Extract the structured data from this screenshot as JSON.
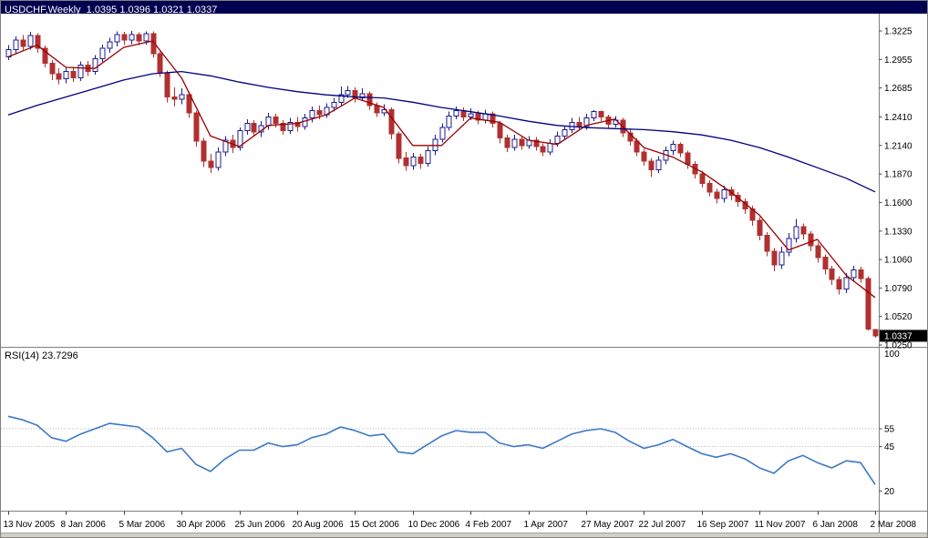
{
  "window": {
    "title": "USDCHF,Weekly  1.0395 1.0396 1.0321 1.0337"
  },
  "colors": {
    "title_bar_bg": "#000050",
    "up_candle": "#1C1C90",
    "down_candle": "#B03030",
    "ma_fast": "#990000",
    "ma_slow": "#000080",
    "rsi_line": "#3C78C8",
    "price_tag_bg": "#000000",
    "price_tag_text": "#FFFFFF",
    "axis_text": "#000000",
    "level_dash": "#BBBBBB",
    "window_chrome": "#D4D0C8",
    "separator": "#808080"
  },
  "chart_data": {
    "type": "candlestick",
    "symbol": "USDCHF",
    "timeframe": "Weekly",
    "ohlc_display": {
      "open": "1.0395",
      "high": "1.0396",
      "low": "1.0321",
      "close": "1.0337"
    },
    "price_axis": [
      "1.3225",
      "1.2955",
      "1.2685",
      "1.2410",
      "1.2140",
      "1.1870",
      "1.1600",
      "1.1330",
      "1.1060",
      "1.0790",
      "1.0520",
      "1.0250"
    ],
    "price_tag": "1.0337",
    "x_label_every": 8,
    "x_axis_labels": [
      "13 Nov 2005",
      "8 Jan 2006",
      "5 Mar 2006",
      "30 Apr 2006",
      "25 Jun 2006",
      "20 Aug 2006",
      "15 Oct 2006",
      "10 Dec 2006",
      "4 Feb 2007",
      "1 Apr 2007",
      "27 May 2007",
      "22 Jul 2007",
      "16 Sep 2007",
      "11 Nov 2007",
      "6 Jan 2008",
      "2 Mar 2008"
    ],
    "candles": [
      [
        1.298,
        1.309,
        1.295,
        1.305
      ],
      [
        1.305,
        1.3175,
        1.301,
        1.314
      ],
      [
        1.314,
        1.3185,
        1.304,
        1.308
      ],
      [
        1.308,
        1.3215,
        1.305,
        1.318
      ],
      [
        1.318,
        1.3205,
        1.302,
        1.306
      ],
      [
        1.306,
        1.3085,
        1.288,
        1.292
      ],
      [
        1.292,
        1.295,
        1.276,
        1.282
      ],
      [
        1.282,
        1.287,
        1.272,
        1.277
      ],
      [
        1.277,
        1.288,
        1.273,
        1.284
      ],
      [
        1.284,
        1.2885,
        1.274,
        1.278
      ],
      [
        1.278,
        1.2935,
        1.275,
        1.29
      ],
      [
        1.29,
        1.294,
        1.28,
        1.284
      ],
      [
        1.284,
        1.2995,
        1.281,
        1.296
      ],
      [
        1.296,
        1.3095,
        1.293,
        1.306
      ],
      [
        1.306,
        1.316,
        1.302,
        1.312
      ],
      [
        1.312,
        1.322,
        1.308,
        1.319
      ],
      [
        1.319,
        1.3215,
        1.309,
        1.314
      ],
      [
        1.314,
        1.3225,
        1.31,
        1.319
      ],
      [
        1.319,
        1.321,
        1.309,
        1.313
      ],
      [
        1.313,
        1.3222,
        1.3095,
        1.32
      ],
      [
        1.32,
        1.322,
        1.297,
        1.301
      ],
      [
        1.301,
        1.303,
        1.279,
        1.283
      ],
      [
        1.283,
        1.285,
        1.255,
        1.26
      ],
      [
        1.26,
        1.269,
        1.251,
        1.258
      ],
      [
        1.258,
        1.268,
        1.253,
        1.262
      ],
      [
        1.262,
        1.265,
        1.24,
        1.245
      ],
      [
        1.245,
        1.247,
        1.213,
        1.218
      ],
      [
        1.218,
        1.221,
        1.1935,
        1.199
      ],
      [
        1.199,
        1.206,
        1.188,
        1.193
      ],
      [
        1.193,
        1.212,
        1.19,
        1.208
      ],
      [
        1.208,
        1.223,
        1.204,
        1.219
      ],
      [
        1.219,
        1.224,
        1.207,
        1.212
      ],
      [
        1.212,
        1.231,
        1.209,
        1.228
      ],
      [
        1.228,
        1.239,
        1.224,
        1.235
      ],
      [
        1.235,
        1.238,
        1.223,
        1.227
      ],
      [
        1.227,
        1.237,
        1.222,
        1.233
      ],
      [
        1.233,
        1.245,
        1.229,
        1.241
      ],
      [
        1.241,
        1.244,
        1.231,
        1.235
      ],
      [
        1.235,
        1.238,
        1.224,
        1.228
      ],
      [
        1.228,
        1.24,
        1.225,
        1.236
      ],
      [
        1.236,
        1.241,
        1.227,
        1.232
      ],
      [
        1.232,
        1.244,
        1.229,
        1.24
      ],
      [
        1.24,
        1.251,
        1.236,
        1.247
      ],
      [
        1.247,
        1.252,
        1.239,
        1.243
      ],
      [
        1.243,
        1.254,
        1.24,
        1.25
      ],
      [
        1.25,
        1.259,
        1.246,
        1.255
      ],
      [
        1.255,
        1.27,
        1.252,
        1.262
      ],
      [
        1.262,
        1.2705,
        1.259,
        1.266
      ],
      [
        1.266,
        1.269,
        1.255,
        1.259
      ],
      [
        1.259,
        1.268,
        1.256,
        1.263
      ],
      [
        1.263,
        1.265,
        1.248,
        1.252
      ],
      [
        1.252,
        1.255,
        1.241,
        1.245
      ],
      [
        1.245,
        1.253,
        1.242,
        1.248
      ],
      [
        1.248,
        1.25,
        1.22,
        1.225
      ],
      [
        1.225,
        1.227,
        1.197,
        1.202
      ],
      [
        1.202,
        1.208,
        1.19,
        1.195
      ],
      [
        1.195,
        1.207,
        1.191,
        1.203
      ],
      [
        1.203,
        1.206,
        1.192,
        1.197
      ],
      [
        1.197,
        1.213,
        1.194,
        1.209
      ],
      [
        1.209,
        1.224,
        1.205,
        1.22
      ],
      [
        1.22,
        1.235,
        1.217,
        1.231
      ],
      [
        1.231,
        1.246,
        1.228,
        1.242
      ],
      [
        1.242,
        1.251,
        1.239,
        1.247
      ],
      [
        1.247,
        1.25,
        1.237,
        1.241
      ],
      [
        1.241,
        1.249,
        1.238,
        1.244
      ],
      [
        1.244,
        1.247,
        1.234,
        1.238
      ],
      [
        1.238,
        1.248,
        1.235,
        1.244
      ],
      [
        1.244,
        1.246,
        1.231,
        1.235
      ],
      [
        1.235,
        1.237,
        1.216,
        1.221
      ],
      [
        1.221,
        1.224,
        1.208,
        1.212
      ],
      [
        1.212,
        1.224,
        1.209,
        1.22
      ],
      [
        1.22,
        1.223,
        1.21,
        1.214
      ],
      [
        1.214,
        1.223,
        1.211,
        1.219
      ],
      [
        1.219,
        1.222,
        1.209,
        1.213
      ],
      [
        1.213,
        1.216,
        1.204,
        1.208
      ],
      [
        1.208,
        1.22,
        1.205,
        1.216
      ],
      [
        1.216,
        1.227,
        1.213,
        1.223
      ],
      [
        1.223,
        1.233,
        1.22,
        1.229
      ],
      [
        1.229,
        1.24,
        1.226,
        1.236
      ],
      [
        1.236,
        1.241,
        1.228,
        1.232
      ],
      [
        1.232,
        1.244,
        1.229,
        1.24
      ],
      [
        1.24,
        1.2475,
        1.237,
        1.246
      ],
      [
        1.246,
        1.247,
        1.237,
        1.241
      ],
      [
        1.241,
        1.243,
        1.23,
        1.234
      ],
      [
        1.234,
        1.242,
        1.231,
        1.238
      ],
      [
        1.238,
        1.24,
        1.222,
        1.226
      ],
      [
        1.226,
        1.229,
        1.214,
        1.218
      ],
      [
        1.218,
        1.221,
        1.204,
        1.208
      ],
      [
        1.208,
        1.211,
        1.195,
        1.199
      ],
      [
        1.199,
        1.202,
        1.184,
        1.191
      ],
      [
        1.191,
        1.204,
        1.188,
        1.2
      ],
      [
        1.2,
        1.213,
        1.196,
        1.209
      ],
      [
        1.209,
        1.2185,
        1.205,
        1.215
      ],
      [
        1.215,
        1.217,
        1.203,
        1.207
      ],
      [
        1.207,
        1.209,
        1.192,
        1.196
      ],
      [
        1.196,
        1.199,
        1.183,
        1.187
      ],
      [
        1.187,
        1.19,
        1.174,
        1.178
      ],
      [
        1.178,
        1.181,
        1.166,
        1.17
      ],
      [
        1.17,
        1.173,
        1.159,
        1.164
      ],
      [
        1.164,
        1.176,
        1.16,
        1.172
      ],
      [
        1.172,
        1.175,
        1.162,
        1.167
      ],
      [
        1.167,
        1.17,
        1.156,
        1.161
      ],
      [
        1.161,
        1.164,
        1.149,
        1.154
      ],
      [
        1.154,
        1.157,
        1.138,
        1.143
      ],
      [
        1.143,
        1.146,
        1.124,
        1.129
      ],
      [
        1.129,
        1.132,
        1.109,
        1.114
      ],
      [
        1.114,
        1.117,
        1.095,
        1.101
      ],
      [
        1.101,
        1.118,
        1.097,
        1.113
      ],
      [
        1.113,
        1.131,
        1.109,
        1.126
      ],
      [
        1.126,
        1.1445,
        1.122,
        1.137
      ],
      [
        1.137,
        1.14,
        1.125,
        1.13
      ],
      [
        1.13,
        1.133,
        1.114,
        1.119
      ],
      [
        1.119,
        1.122,
        1.103,
        1.108
      ],
      [
        1.108,
        1.111,
        1.092,
        1.097
      ],
      [
        1.097,
        1.1,
        1.082,
        1.087
      ],
      [
        1.087,
        1.09,
        1.073,
        1.078
      ],
      [
        1.078,
        1.093,
        1.074,
        1.089
      ],
      [
        1.089,
        1.1,
        1.085,
        1.096
      ],
      [
        1.096,
        1.099,
        1.084,
        1.088
      ],
      [
        1.088,
        1.09,
        1.039,
        1.04
      ],
      [
        1.0395,
        1.0396,
        1.0321,
        1.0337
      ]
    ],
    "overlays": [
      {
        "name": "ma-fast",
        "color": "#990000",
        "sample_step": 4,
        "values": [
          1.298,
          1.309,
          1.288,
          1.287,
          1.307,
          1.313,
          1.278,
          1.223,
          1.213,
          1.233,
          1.235,
          1.243,
          1.259,
          1.25,
          1.214,
          1.214,
          1.24,
          1.236,
          1.219,
          1.215,
          1.233,
          1.239,
          1.212,
          1.203,
          1.189,
          1.17,
          1.148,
          1.115,
          1.125,
          1.091,
          1.07
        ]
      },
      {
        "name": "ma-slow",
        "color": "#000080",
        "sample_step": 4,
        "values": [
          1.243,
          1.252,
          1.26,
          1.268,
          1.276,
          1.282,
          1.284,
          1.28,
          1.274,
          1.269,
          1.265,
          1.262,
          1.26,
          1.259,
          1.255,
          1.25,
          1.246,
          1.242,
          1.237,
          1.233,
          1.231,
          1.23,
          1.229,
          1.227,
          1.224,
          1.219,
          1.212,
          1.203,
          1.193,
          1.183,
          1.17
        ]
      }
    ],
    "indicator": {
      "name": "RSI",
      "period": 14,
      "current": "23.7296",
      "label": "RSI(14) 23.7296",
      "color": "#3C78C8",
      "levels": [
        55,
        45
      ],
      "axis_labels": [
        "100",
        "55",
        "45",
        "20"
      ],
      "axis_values": [
        100,
        55,
        45,
        20
      ],
      "range": [
        10,
        100
      ],
      "sample_step": 2,
      "values": [
        62,
        60,
        57,
        50,
        48,
        52,
        55,
        58,
        57,
        56,
        50,
        42,
        44,
        35,
        31,
        38,
        43,
        43,
        47,
        45,
        46,
        50,
        52,
        56,
        54,
        51,
        52,
        42,
        41,
        46,
        51,
        54,
        53,
        53,
        47,
        45,
        46,
        44,
        48,
        52,
        54,
        55,
        53,
        48,
        44,
        46,
        49,
        45,
        41,
        39,
        41,
        38,
        33,
        30,
        37,
        40,
        36,
        33,
        37,
        36,
        23.73
      ]
    }
  }
}
